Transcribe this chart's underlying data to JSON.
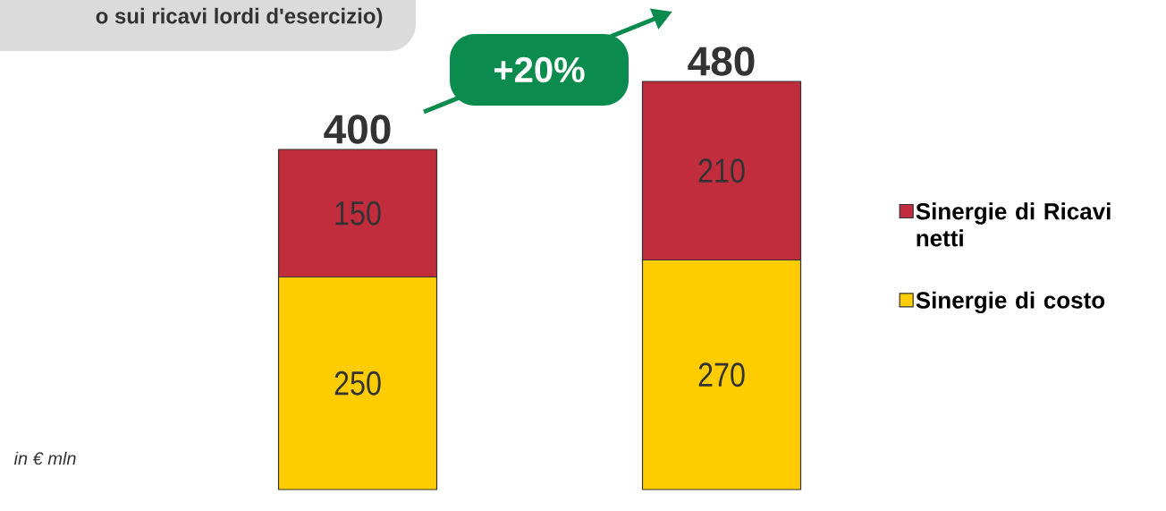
{
  "chart_data": {
    "type": "bar",
    "stacked": true,
    "title": "o sui ricavi  lordi d'esercizio)",
    "categories": [
      null,
      null
    ],
    "series": [
      {
        "name": "Sinergie di costo",
        "color": "#ffcc00",
        "values": [
          250,
          270
        ]
      },
      {
        "name": "Sinergie di Ricavi netti",
        "color": "#c22d3d",
        "values": [
          150,
          210
        ]
      }
    ],
    "data_labels": true,
    "totals": [
      "400",
      "480"
    ],
    "legend": "right",
    "annotations": [
      "in € mln",
      "+20%"
    ]
  }
}
